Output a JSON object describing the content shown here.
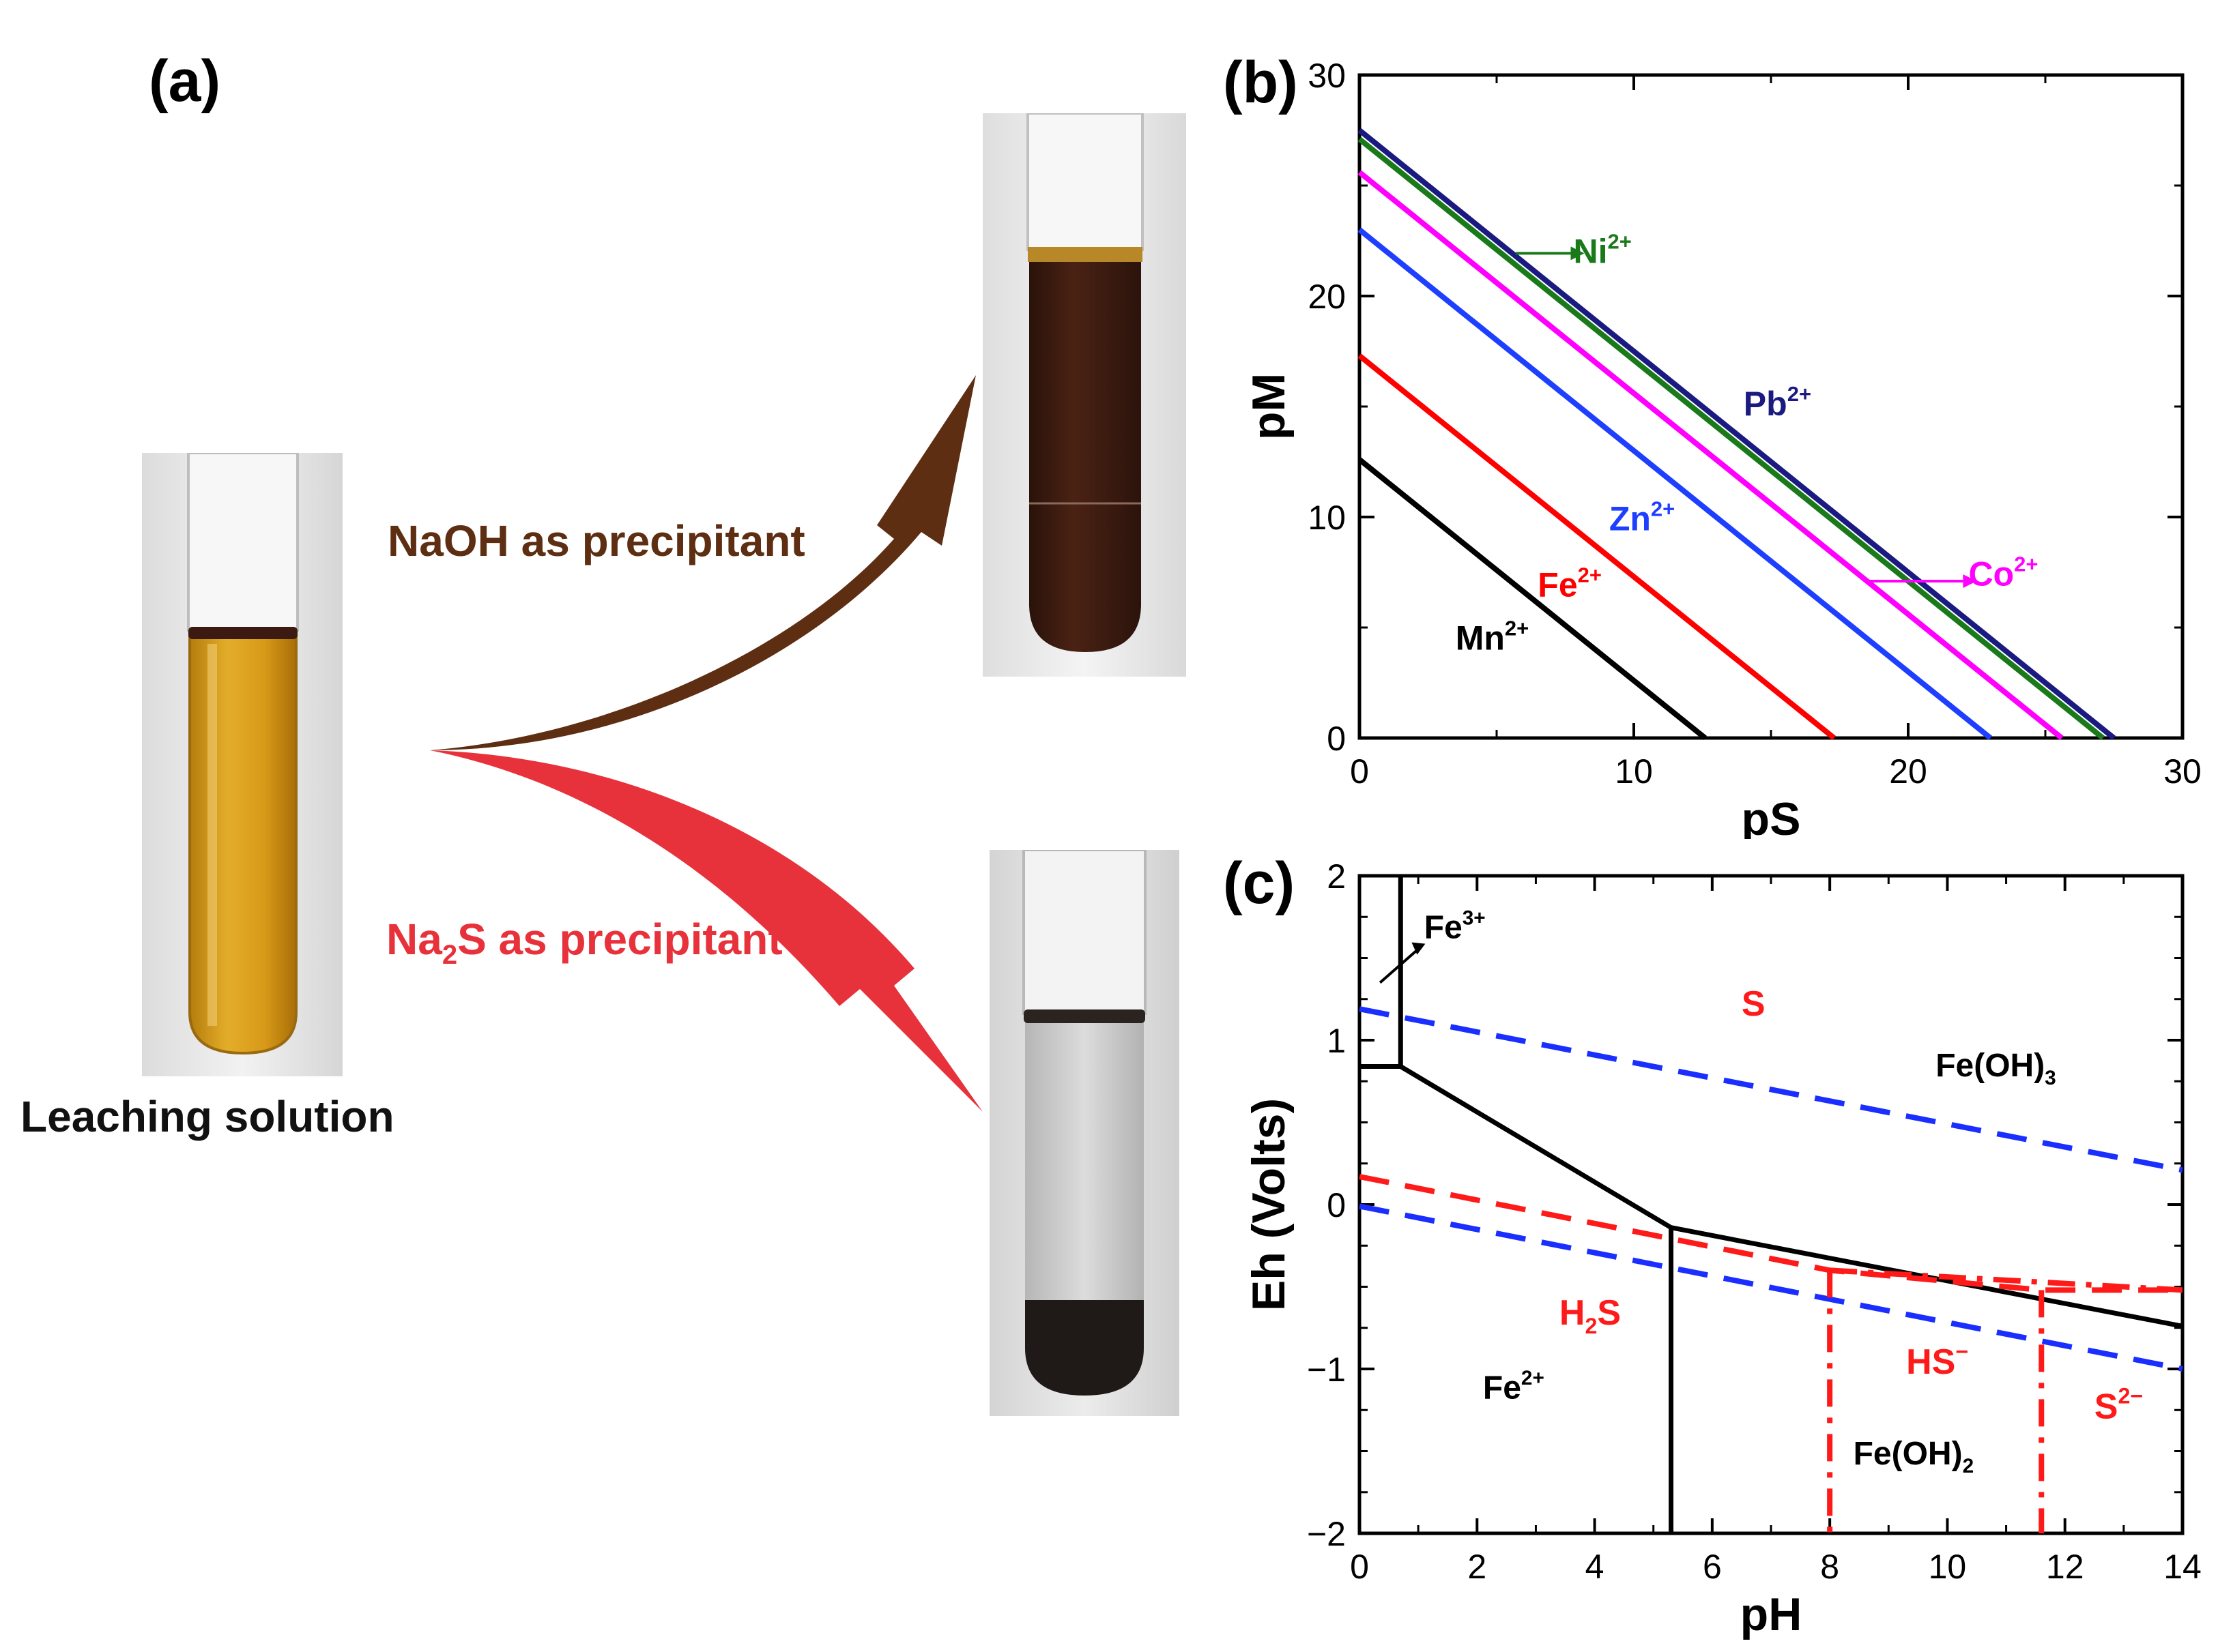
{
  "panel_a": {
    "label": "(a)",
    "source_caption": "Leaching solution",
    "arrow_top_label": "NaOH as precipitant",
    "arrow_bottom_label_pre": "Na",
    "arrow_bottom_label_sub": "2",
    "arrow_bottom_label_post": "S as precipitant",
    "colors": {
      "naoh_arrow": "#5e2e12",
      "na2s_arrow": "#e8323b",
      "leach_liquid": "#d9a21a",
      "naoh_liquid": "#3a1a0e",
      "na2s_precipitate": "#201a16"
    }
  },
  "chart_data": [
    {
      "type": "line",
      "panel_label": "(b)",
      "xlabel": "pS",
      "ylabel": "pM",
      "xlim": [
        0,
        30
      ],
      "ylim": [
        0,
        30
      ],
      "xticks": [
        "0",
        "10",
        "20",
        "30"
      ],
      "yticks": [
        "0",
        "10",
        "20",
        "30"
      ],
      "series": [
        {
          "name": "Mn",
          "sup": "2+",
          "color": "#000000",
          "x": [
            0,
            12.6
          ],
          "y": [
            12.6,
            0
          ]
        },
        {
          "name": "Fe",
          "sup": "2+",
          "color": "#ff0000",
          "x": [
            0,
            17.3
          ],
          "y": [
            17.3,
            0
          ]
        },
        {
          "name": "Zn",
          "sup": "2+",
          "color": "#1f3fff",
          "x": [
            0,
            23.0
          ],
          "y": [
            23.0,
            0
          ]
        },
        {
          "name": "Co",
          "sup": "2+",
          "color": "#ff00ff",
          "x": [
            0,
            25.6
          ],
          "y": [
            25.6,
            0
          ]
        },
        {
          "name": "Ni",
          "sup": "2+",
          "color": "#1a7a1a",
          "x": [
            0,
            27.1
          ],
          "y": [
            27.1,
            0
          ]
        },
        {
          "name": "Pb",
          "sup": "2+",
          "color": "#1a1a80",
          "x": [
            0,
            27.5
          ],
          "y": [
            27.5,
            0
          ]
        }
      ]
    },
    {
      "type": "line",
      "panel_label": "(c)",
      "xlabel": "pH",
      "ylabel": "Eh (Volts)",
      "xlim": [
        0,
        14
      ],
      "ylim": [
        -2,
        2
      ],
      "xticks": [
        "0",
        "2",
        "4",
        "6",
        "8",
        "10",
        "12",
        "14"
      ],
      "yticks": [
        "−2",
        "−1",
        "0",
        "1",
        "2"
      ],
      "series": [
        {
          "name": "Fe boundary",
          "style": "solid",
          "color": "#000000",
          "x": [
            0,
            0.7,
            0.7,
            5.3,
            14
          ],
          "y": [
            0.84,
            0.84,
            0.84,
            -0.14,
            -0.74
          ]
        },
        {
          "name": "Fe3+ vertical",
          "style": "solid",
          "color": "#000000",
          "x": [
            0.7,
            0.7
          ],
          "y": [
            0.84,
            2.0
          ]
        },
        {
          "name": "Fe2+/Fe(OH)2 vertical",
          "style": "solid",
          "color": "#000000",
          "x": [
            5.3,
            5.3
          ],
          "y": [
            -0.14,
            -2.0
          ]
        },
        {
          "name": "water upper",
          "style": "dashed",
          "color": "#1a2fff",
          "x": [
            0,
            14
          ],
          "y": [
            1.19,
            0.21
          ]
        },
        {
          "name": "water lower",
          "style": "dashed",
          "color": "#1a2fff",
          "x": [
            0,
            14
          ],
          "y": [
            -0.01,
            -1.0
          ]
        },
        {
          "name": "S/H2S",
          "style": "dashed",
          "color": "#ff1a1a",
          "x": [
            0,
            8.0,
            11.6,
            14
          ],
          "y": [
            0.17,
            -0.4,
            -0.52,
            -0.52
          ]
        },
        {
          "name": "H2S/HS- boundary",
          "style": "dashdot",
          "color": "#ff1a1a",
          "x": [
            8.0,
            8.0
          ],
          "y": [
            -0.4,
            -2.0
          ]
        },
        {
          "name": "HS-/S2- boundary",
          "style": "dashdot",
          "color": "#ff1a1a",
          "x": [
            11.6,
            11.6
          ],
          "y": [
            -0.52,
            -2.0
          ]
        },
        {
          "name": "HS-/S2- top",
          "style": "dashdot",
          "color": "#ff1a1a",
          "x": [
            8.0,
            14
          ],
          "y": [
            -0.4,
            -0.52
          ]
        }
      ],
      "region_labels": [
        {
          "text": "Fe",
          "sup": "3+",
          "sub": "",
          "post": "",
          "color": "#000000",
          "x": 1.1,
          "y": 1.62
        },
        {
          "text": "S",
          "sup": "",
          "sub": "",
          "post": "",
          "color": "#ff1a1a",
          "x": 6.5,
          "y": 1.15
        },
        {
          "text": "Fe(OH)",
          "sup": "",
          "sub": "3",
          "post": "",
          "color": "#000000",
          "x": 9.8,
          "y": 0.78
        },
        {
          "text": "H",
          "sup": "",
          "sub": "2",
          "post": "S",
          "color": "#ff1a1a",
          "x": 3.4,
          "y": -0.73
        },
        {
          "text": "Fe",
          "sup": "2+",
          "sub": "",
          "post": "",
          "color": "#000000",
          "x": 2.1,
          "y": -1.18
        },
        {
          "text": "HS",
          "sup": "−",
          "sub": "",
          "post": "",
          "color": "#ff1a1a",
          "x": 9.3,
          "y": -1.03
        },
        {
          "text": "S",
          "sup": "2−",
          "sub": "",
          "post": "",
          "color": "#ff1a1a",
          "x": 12.5,
          "y": -1.3
        },
        {
          "text": "Fe(OH)",
          "sup": "",
          "sub": "2",
          "post": "",
          "color": "#000000",
          "x": 8.4,
          "y": -1.58
        }
      ]
    }
  ]
}
